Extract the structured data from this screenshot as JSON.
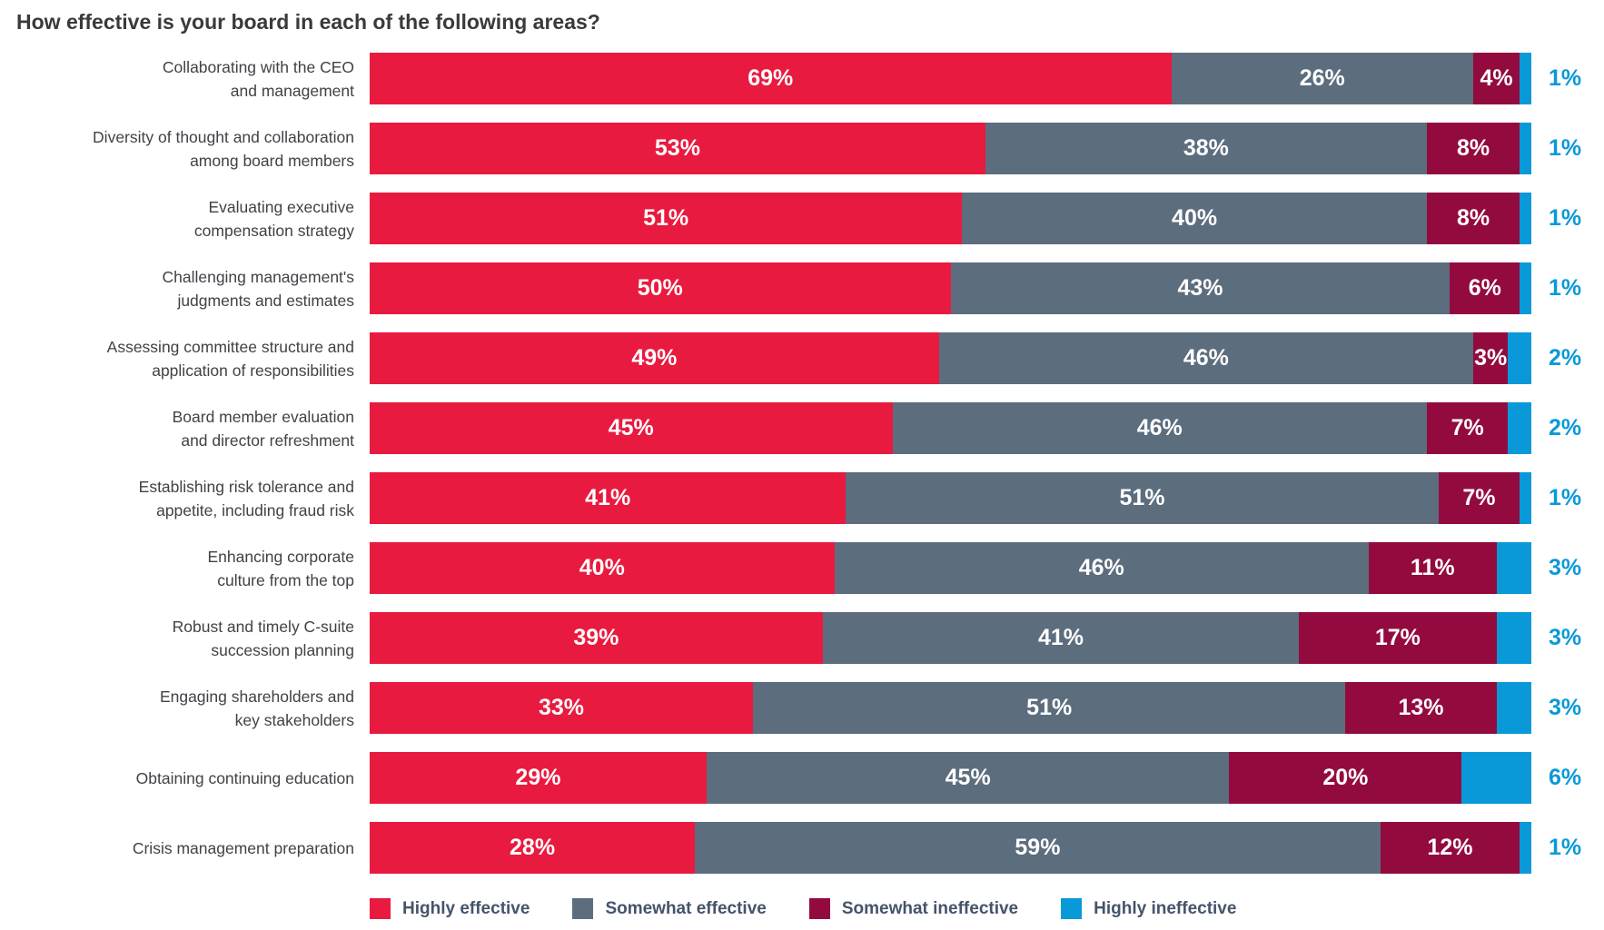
{
  "title": "How effective is your board in each of the following areas?",
  "chart_data": {
    "type": "bar",
    "variant": "horizontal-stacked-100",
    "title": "How effective is your board in each of the following areas?",
    "value_suffix": "%",
    "xlim": [
      0,
      100
    ],
    "grid": false,
    "legend_position": "bottom",
    "categories": [
      "Collaborating with the CEO and management",
      "Diversity of thought and collaboration among board members",
      "Evaluating executive compensation strategy",
      "Challenging management's judgments and estimates",
      "Assessing committee structure and application of responsibilities",
      "Board member evaluation and director refreshment",
      "Establishing risk tolerance and appetite, including fraud risk",
      "Enhancing corporate culture from the top",
      "Robust and timely C-suite succession planning",
      "Engaging shareholders and key stakeholders",
      "Obtaining continuing education",
      "Crisis management preparation"
    ],
    "category_lines": [
      [
        "Collaborating with the CEO",
        "and management"
      ],
      [
        "Diversity of thought and collaboration",
        "among board members"
      ],
      [
        "Evaluating executive",
        "compensation strategy"
      ],
      [
        "Challenging management's",
        "judgments and estimates"
      ],
      [
        "Assessing committee structure and",
        "application of responsibilities"
      ],
      [
        "Board member evaluation",
        "and director refreshment"
      ],
      [
        "Establishing risk tolerance and",
        "appetite, including fraud risk"
      ],
      [
        "Enhancing corporate",
        "culture from the top"
      ],
      [
        "Robust and timely C-suite",
        "succession planning"
      ],
      [
        "Engaging shareholders and",
        "key stakeholders"
      ],
      [
        "Obtaining continuing education"
      ],
      [
        "Crisis management preparation"
      ]
    ],
    "series": [
      {
        "name": "Highly effective",
        "color": "#e91a3f",
        "label_position": "inside",
        "values": [
          69,
          53,
          51,
          50,
          49,
          45,
          41,
          40,
          39,
          33,
          29,
          28
        ]
      },
      {
        "name": "Somewhat effective",
        "color": "#5c6d7e",
        "label_position": "inside",
        "values": [
          26,
          38,
          40,
          43,
          46,
          46,
          51,
          46,
          41,
          51,
          45,
          59
        ]
      },
      {
        "name": "Somewhat ineffective",
        "color": "#930b3e",
        "label_position": "inside",
        "values": [
          4,
          8,
          8,
          6,
          3,
          7,
          7,
          11,
          17,
          13,
          20,
          12
        ]
      },
      {
        "name": "Highly ineffective",
        "color": "#0a99d8",
        "label_position": "outside-right",
        "values": [
          1,
          1,
          1,
          1,
          2,
          2,
          1,
          3,
          3,
          3,
          6,
          1
        ]
      }
    ]
  },
  "legend": {
    "items": [
      {
        "label": "Highly effective",
        "color": "#e91a3f"
      },
      {
        "label": "Somewhat effective",
        "color": "#5c6d7e"
      },
      {
        "label": "Somewhat ineffective",
        "color": "#930b3e"
      },
      {
        "label": "Highly ineffective",
        "color": "#0a99d8"
      }
    ]
  }
}
